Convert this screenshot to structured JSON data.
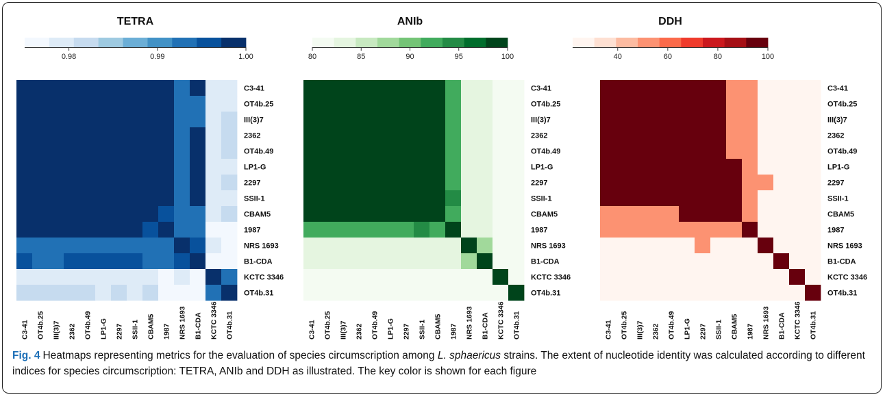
{
  "chart_data": [
    {
      "type": "heatmap",
      "title": "TETRA",
      "row_labels": [
        "C3-41",
        "OT4b.25",
        "III(3)7",
        "2362",
        "OT4b.49",
        "LP1-G",
        "2297",
        "SSII-1",
        "CBAM5",
        "1987",
        "NRS 1693",
        "B1-CDA",
        "KCTC 3346",
        "OT4b.31"
      ],
      "col_labels": [
        "C3-41",
        "OT4b.25",
        "III(3)7",
        "2362",
        "OT4b.49",
        "LP1-G",
        "2297",
        "SSII-1",
        "CBAM5",
        "1987",
        "NRS 1693",
        "B1-CDA",
        "KCTC 3346",
        "OT4b.31"
      ],
      "colorbar": {
        "min": 0.975,
        "max": 1.0,
        "ticks": [
          0.98,
          0.99,
          1.0
        ],
        "tick_labels": [
          "0.98",
          "0.99",
          "1.00"
        ],
        "colors": [
          "#f3f8fe",
          "#deebf7",
          "#c6dbef",
          "#9ecae1",
          "#6baed6",
          "#4292c6",
          "#2171b5",
          "#08519c",
          "#08306b"
        ]
      },
      "values": [
        [
          1.0,
          1.0,
          1.0,
          1.0,
          1.0,
          1.0,
          1.0,
          1.0,
          1.0,
          1.0,
          0.992,
          0.998,
          0.979,
          0.979
        ],
        [
          1.0,
          1.0,
          1.0,
          1.0,
          1.0,
          1.0,
          1.0,
          1.0,
          1.0,
          1.0,
          0.992,
          0.992,
          0.979,
          0.979
        ],
        [
          1.0,
          1.0,
          1.0,
          1.0,
          1.0,
          1.0,
          1.0,
          1.0,
          1.0,
          1.0,
          0.992,
          0.992,
          0.979,
          0.981
        ],
        [
          1.0,
          1.0,
          1.0,
          1.0,
          1.0,
          1.0,
          1.0,
          1.0,
          1.0,
          1.0,
          0.992,
          0.998,
          0.979,
          0.981
        ],
        [
          1.0,
          1.0,
          1.0,
          1.0,
          1.0,
          1.0,
          1.0,
          1.0,
          1.0,
          1.0,
          0.992,
          0.998,
          0.979,
          0.981
        ],
        [
          1.0,
          1.0,
          1.0,
          1.0,
          1.0,
          1.0,
          1.0,
          1.0,
          1.0,
          1.0,
          0.992,
          0.998,
          0.979,
          0.978
        ],
        [
          1.0,
          1.0,
          1.0,
          1.0,
          1.0,
          1.0,
          1.0,
          1.0,
          1.0,
          1.0,
          0.992,
          0.998,
          0.979,
          0.981
        ],
        [
          1.0,
          1.0,
          1.0,
          1.0,
          1.0,
          1.0,
          1.0,
          1.0,
          1.0,
          1.0,
          0.992,
          0.998,
          0.979,
          0.978
        ],
        [
          1.0,
          1.0,
          1.0,
          1.0,
          1.0,
          1.0,
          1.0,
          1.0,
          1.0,
          0.996,
          0.992,
          0.992,
          0.979,
          0.981
        ],
        [
          1.0,
          1.0,
          1.0,
          1.0,
          1.0,
          1.0,
          1.0,
          1.0,
          0.996,
          1.0,
          0.992,
          0.992,
          0.977,
          0.977
        ],
        [
          0.992,
          0.992,
          0.992,
          0.992,
          0.992,
          0.992,
          0.992,
          0.992,
          0.992,
          0.992,
          1.0,
          0.996,
          0.979,
          0.977
        ],
        [
          0.996,
          0.992,
          0.992,
          0.996,
          0.996,
          0.996,
          0.996,
          0.996,
          0.992,
          0.992,
          0.996,
          1.0,
          0.977,
          0.977
        ],
        [
          0.979,
          0.979,
          0.979,
          0.979,
          0.979,
          0.979,
          0.979,
          0.979,
          0.979,
          0.977,
          0.979,
          0.977,
          1.0,
          0.992
        ],
        [
          0.981,
          0.981,
          0.981,
          0.981,
          0.981,
          0.978,
          0.981,
          0.978,
          0.981,
          0.977,
          0.977,
          0.977,
          0.992,
          1.0
        ]
      ]
    },
    {
      "type": "heatmap",
      "title": "ANIb",
      "row_labels": [
        "C3-41",
        "OT4b.25",
        "III(3)7",
        "2362",
        "OT4b.49",
        "LP1-G",
        "2297",
        "SSII-1",
        "CBAM5",
        "1987",
        "NRS 1693",
        "B1-CDA",
        "KCTC 3346",
        "OT4b.31"
      ],
      "col_labels": [
        "C3-41",
        "OT4b.25",
        "III(3)7",
        "2362",
        "OT4b.49",
        "LP1-G",
        "2297",
        "SSII-1",
        "CBAM5",
        "1987",
        "NRS 1693",
        "B1-CDA",
        "KCTC 3346",
        "OT4b.31"
      ],
      "colorbar": {
        "min": 80,
        "max": 100,
        "ticks": [
          80,
          85,
          90,
          95,
          100
        ],
        "tick_labels": [
          "80",
          "85",
          "90",
          "95",
          "100"
        ],
        "colors": [
          "#f4fbf2",
          "#e5f5e0",
          "#c7e9c0",
          "#a1d99b",
          "#74c476",
          "#41ab5d",
          "#238b45",
          "#006d2c",
          "#00441b"
        ]
      },
      "values": [
        [
          100,
          100,
          100,
          100,
          100,
          100,
          100,
          100,
          100,
          92,
          84,
          84,
          81,
          81
        ],
        [
          100,
          100,
          100,
          100,
          100,
          100,
          100,
          100,
          100,
          92,
          84,
          84,
          81,
          81
        ],
        [
          100,
          100,
          100,
          100,
          100,
          100,
          100,
          100,
          100,
          92,
          84,
          84,
          81,
          81
        ],
        [
          100,
          100,
          100,
          100,
          100,
          100,
          100,
          100,
          100,
          92,
          84,
          84,
          81,
          81
        ],
        [
          100,
          100,
          100,
          100,
          100,
          100,
          100,
          100,
          100,
          92,
          84,
          84,
          81,
          81
        ],
        [
          100,
          100,
          100,
          100,
          100,
          100,
          100,
          100,
          100,
          92,
          84,
          84,
          81,
          81
        ],
        [
          100,
          100,
          100,
          100,
          100,
          100,
          100,
          100,
          100,
          92,
          84,
          84,
          81,
          81
        ],
        [
          100,
          100,
          100,
          100,
          100,
          100,
          100,
          100,
          100,
          94,
          84,
          84,
          81,
          81
        ],
        [
          100,
          100,
          100,
          100,
          100,
          100,
          100,
          100,
          100,
          92,
          84,
          84,
          81,
          81
        ],
        [
          92,
          92,
          92,
          92,
          92,
          92,
          92,
          94,
          92,
          100,
          84,
          84,
          81,
          81
        ],
        [
          84,
          84,
          84,
          84,
          84,
          84,
          84,
          84,
          84,
          84,
          100,
          87,
          81,
          81
        ],
        [
          84,
          84,
          84,
          84,
          84,
          84,
          84,
          84,
          84,
          84,
          87,
          100,
          81,
          81
        ],
        [
          81,
          81,
          81,
          81,
          81,
          81,
          81,
          81,
          81,
          81,
          81,
          81,
          100,
          82
        ],
        [
          81,
          81,
          81,
          81,
          81,
          81,
          81,
          81,
          81,
          81,
          81,
          81,
          82,
          100
        ]
      ]
    },
    {
      "type": "heatmap",
      "title": "DDH",
      "row_labels": [
        "C3-41",
        "OT4b.25",
        "III(3)7",
        "2362",
        "OT4b.49",
        "LP1-G",
        "2297",
        "SSII-1",
        "CBAM5",
        "1987",
        "NRS 1693",
        "B1-CDA",
        "KCTC 3346",
        "OT4b.31"
      ],
      "col_labels": [
        "C3-41",
        "OT4b.25",
        "III(3)7",
        "2362",
        "OT4b.49",
        "LP1-G",
        "2297",
        "SSII-1",
        "CBAM5",
        "1987",
        "NRS 1693",
        "B1-CDA",
        "KCTC 3346",
        "OT4b.31"
      ],
      "colorbar": {
        "min": 22,
        "max": 100,
        "ticks": [
          40,
          60,
          80,
          100
        ],
        "tick_labels": [
          "40",
          "60",
          "80",
          "100"
        ],
        "colors": [
          "#fff5f0",
          "#fee0d2",
          "#fcbba1",
          "#fc9272",
          "#fb6a4a",
          "#ef3b2c",
          "#cb181d",
          "#a50f15",
          "#67000d"
        ]
      },
      "values": [
        [
          100,
          100,
          100,
          100,
          100,
          100,
          100,
          100,
          56,
          48,
          24,
          24,
          24,
          24
        ],
        [
          100,
          100,
          100,
          100,
          100,
          100,
          100,
          100,
          56,
          48,
          24,
          24,
          24,
          24
        ],
        [
          100,
          100,
          100,
          100,
          100,
          100,
          100,
          100,
          56,
          48,
          24,
          24,
          24,
          24
        ],
        [
          100,
          100,
          100,
          100,
          100,
          100,
          100,
          100,
          56,
          48,
          24,
          24,
          24,
          24
        ],
        [
          100,
          100,
          100,
          100,
          100,
          100,
          100,
          100,
          56,
          48,
          24,
          24,
          24,
          24
        ],
        [
          100,
          100,
          100,
          100,
          100,
          100,
          100,
          100,
          100,
          48,
          24,
          24,
          24,
          24
        ],
        [
          100,
          100,
          100,
          100,
          100,
          100,
          100,
          100,
          100,
          48,
          48,
          24,
          24,
          24
        ],
        [
          100,
          100,
          100,
          100,
          100,
          100,
          100,
          100,
          100,
          48,
          24,
          24,
          24,
          24
        ],
        [
          56,
          56,
          56,
          56,
          56,
          100,
          100,
          100,
          100,
          48,
          24,
          24,
          24,
          24
        ],
        [
          48,
          48,
          48,
          48,
          48,
          48,
          48,
          48,
          48,
          100,
          24,
          24,
          24,
          24
        ],
        [
          24,
          24,
          24,
          24,
          24,
          24,
          48,
          24,
          24,
          24,
          100,
          28,
          24,
          24
        ],
        [
          24,
          24,
          24,
          24,
          24,
          24,
          24,
          24,
          24,
          24,
          28,
          100,
          24,
          24
        ],
        [
          24,
          24,
          24,
          24,
          24,
          24,
          24,
          24,
          24,
          24,
          24,
          24,
          100,
          24
        ],
        [
          24,
          24,
          24,
          24,
          24,
          24,
          24,
          24,
          24,
          24,
          24,
          24,
          24,
          100
        ]
      ]
    }
  ],
  "caption": {
    "label": "Fig. 4",
    "text_1": "Heatmaps representing metrics for the evaluation of species circumscription among ",
    "species": "L. sphaericus",
    "text_2": " strains. The extent of nucleotide identity was calculated according to different indices for species circumscription: TETRA, ANIb and DDH as illustrated. The key color is shown for each figure"
  }
}
